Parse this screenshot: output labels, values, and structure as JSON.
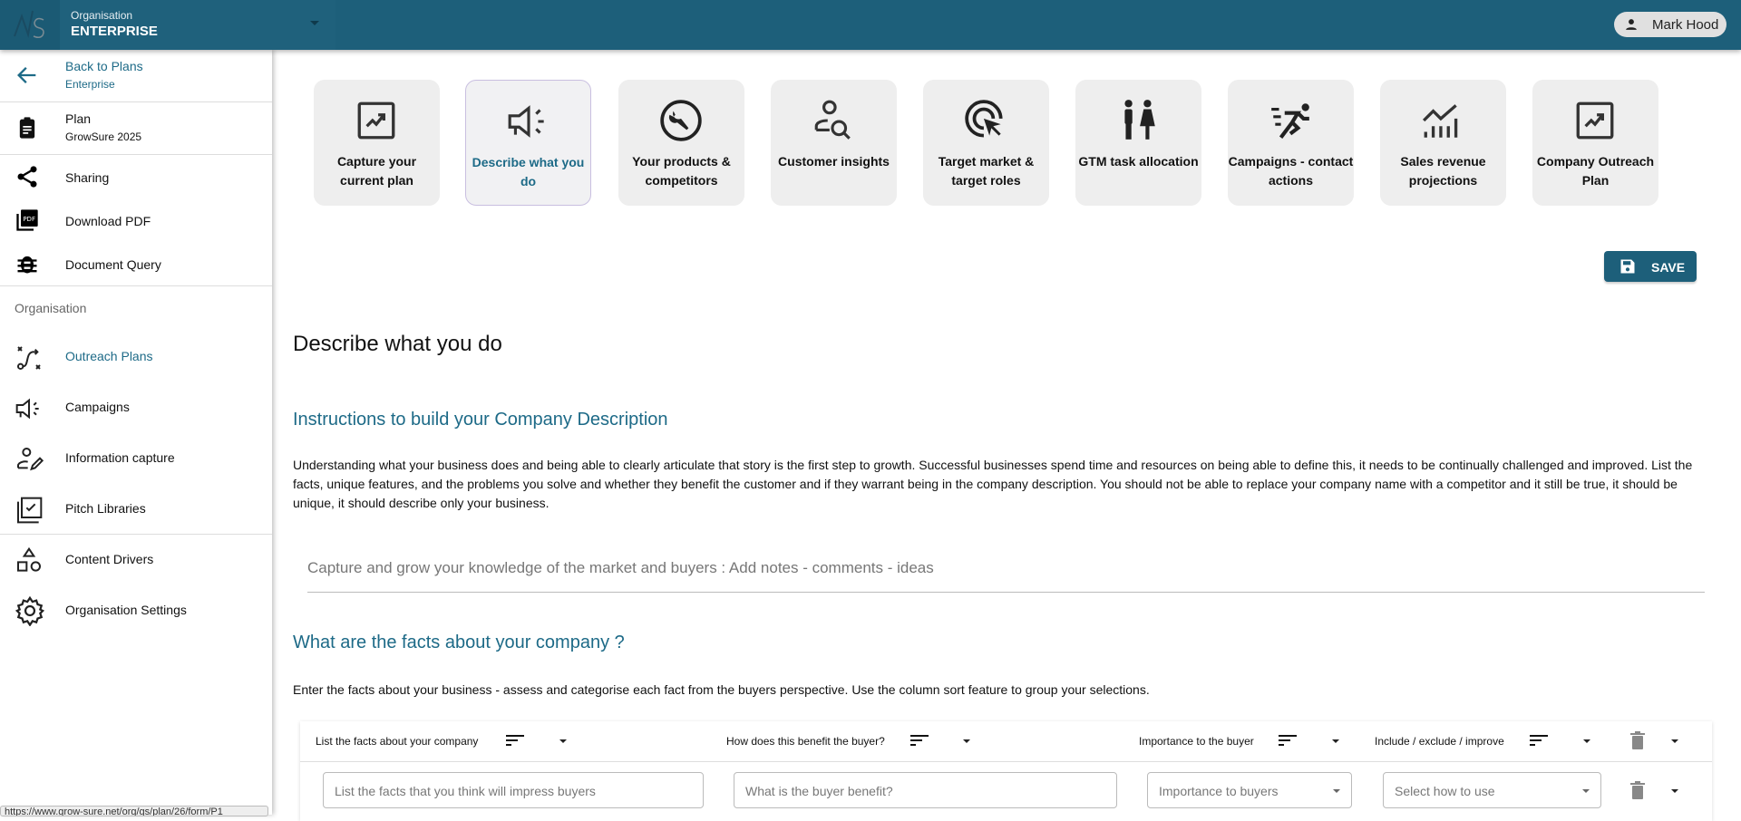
{
  "header": {
    "org_label": "Organisation",
    "org_name": "ENTERPRISE",
    "user_name": "Mark Hood",
    "brand_color": "#1d5f7a"
  },
  "sidebar": {
    "back": {
      "label": "Back to Plans",
      "sub": "Enterprise"
    },
    "plan": {
      "label": "Plan",
      "sub": "GrowSure 2025"
    },
    "items": [
      {
        "label": "Sharing",
        "icon": "share-icon"
      },
      {
        "label": "Download PDF",
        "icon": "pdf-icon"
      },
      {
        "label": "Document Query",
        "icon": "bug-icon"
      }
    ],
    "section": "Organisation",
    "org_items": [
      {
        "label": "Outreach Plans",
        "icon": "route-icon",
        "active": true
      },
      {
        "label": "Campaigns",
        "icon": "megaphone-icon"
      },
      {
        "label": "Information capture",
        "icon": "person-edit-icon"
      },
      {
        "label": "Pitch Libraries",
        "icon": "library-check-icon"
      },
      {
        "label": "Content Drivers",
        "icon": "shapes-icon"
      },
      {
        "label": "Organisation Settings",
        "icon": "gear-icon"
      }
    ]
  },
  "steps": [
    {
      "label": "Capture your current plan",
      "icon": "trend-box-icon"
    },
    {
      "label": "Describe what you do",
      "icon": "megaphone-icon",
      "active": true
    },
    {
      "label": "Your products & competitors",
      "icon": "wrench-icon"
    },
    {
      "label": "Customer insights",
      "icon": "person-search-icon"
    },
    {
      "label": "Target market & target roles",
      "icon": "target-cursor-icon"
    },
    {
      "label": "GTM task allocation",
      "icon": "people-icon"
    },
    {
      "label": "Campaigns - contact actions",
      "icon": "runner-icon"
    },
    {
      "label": "Sales revenue projections",
      "icon": "chart-icon"
    },
    {
      "label": "Company Outreach Plan",
      "icon": "trend-box-icon"
    }
  ],
  "main": {
    "save_label": "SAVE",
    "title": "Describe what you do",
    "instructions_heading": "Instructions to build your Company Description",
    "instructions": "Understanding what your business does and being able to clearly articulate that story is the first step to growth. Successful businesses spend time and resources on being able to define this, it needs to be continually challenged and improved. List the facts, unique features, and the problems you solve and whether they benefit the customer and if they warrant being in the company description. You should not be able to replace your company name with a competitor and it still be true, it should be unique, it should describe only your business.",
    "notes_placeholder": "Capture and grow your knowledge of the market and buyers : Add notes - comments - ideas",
    "facts_heading": "What are the facts about your company ?",
    "facts_desc": "Enter the facts about your business - assess and categorise each fact from the buyers perspective. Use the column sort feature to group your selections.",
    "table": {
      "columns": [
        "List the facts about your company",
        "How does this benefit the buyer?",
        "Importance to the buyer",
        "Include / exclude / improve"
      ],
      "row_placeholders": [
        "List the facts that you think will impress buyers",
        "What is the buyer benefit?",
        "Importance to buyers",
        "Select how to use"
      ]
    }
  },
  "status_url": "https://www.grow-sure.net/org/gs/plan/26/form/P1"
}
